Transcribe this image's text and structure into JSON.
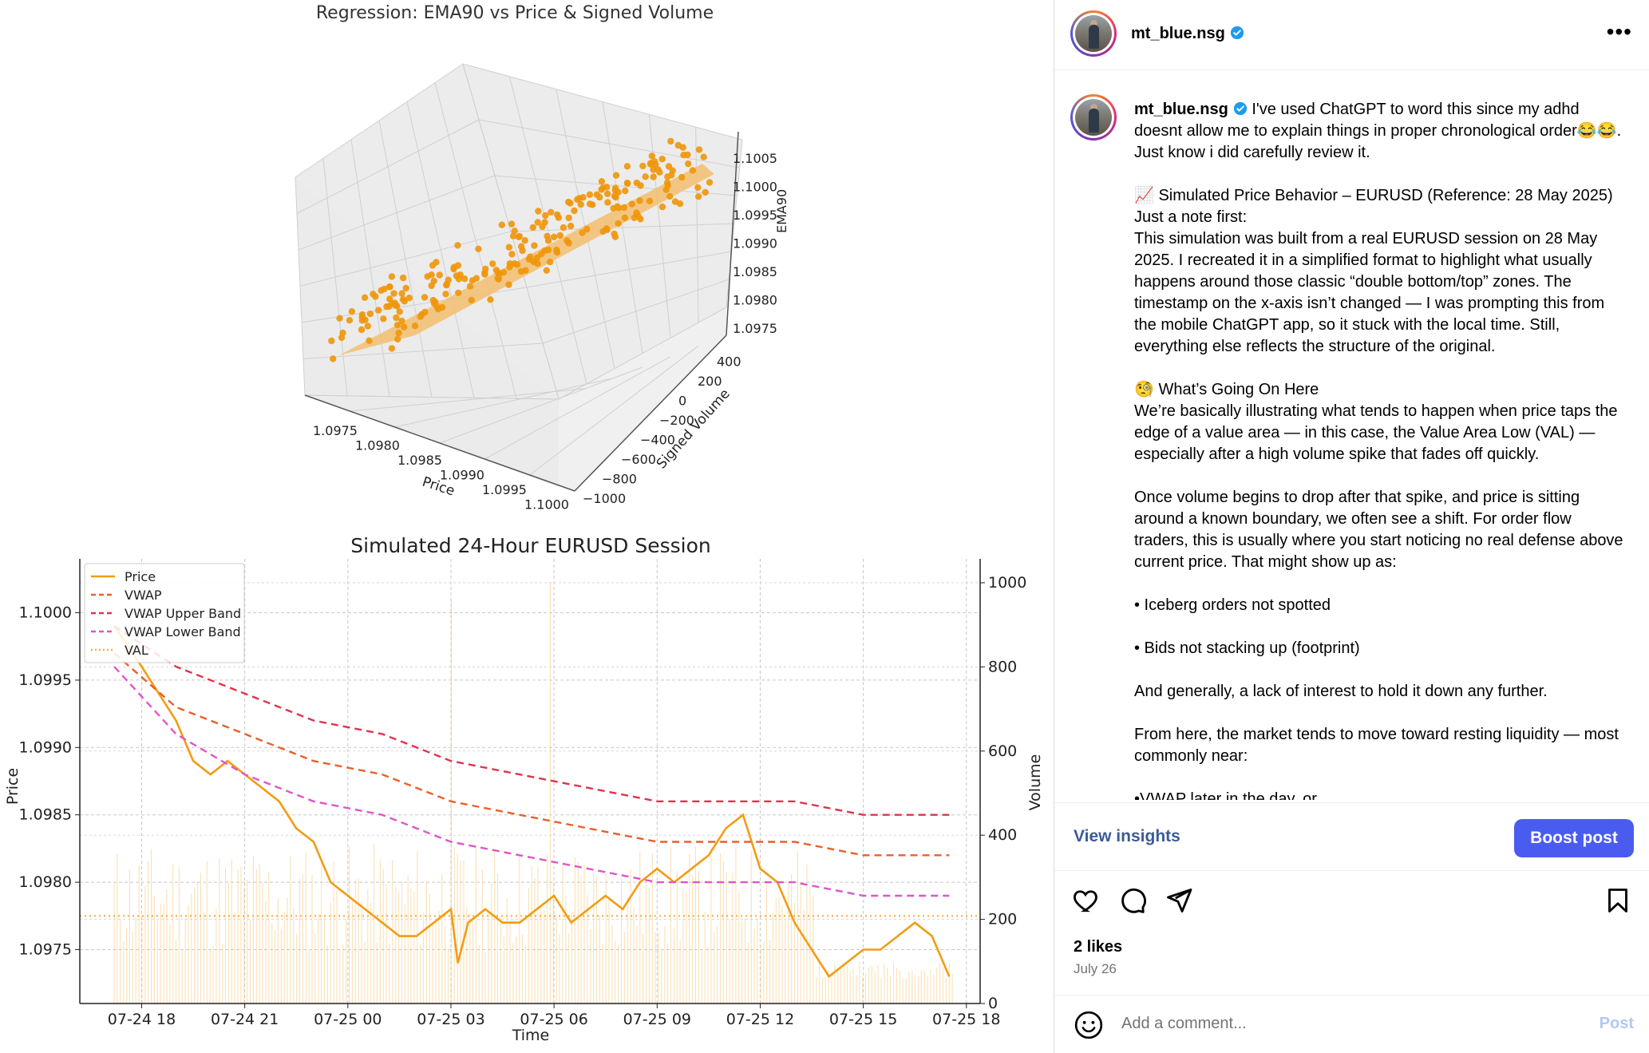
{
  "post": {
    "username": "mt_blue.nsg",
    "more_icon": "more-horizontal-icon",
    "caption_lines": [
      {
        "text": "I've used ChatGPT to word this since my adhd doesnt allow me to explain things in proper chronological order😂😂. Just know i did carefully review it.",
        "lead": true
      },
      {
        "text": ""
      },
      {
        "text": "📈 Simulated Price Behavior – EURUSD (Reference: 28 May 2025)"
      },
      {
        "text": "Just a note first:"
      },
      {
        "text": "This simulation was built from a real EURUSD session on 28 May 2025. I recreated it in a simplified format to highlight what usually happens around those classic “double bottom/top” zones. The timestamp on the x-axis isn’t changed — I was prompting this from the mobile ChatGPT app, so it stuck with the local time. Still, everything else reflects the structure of the original."
      },
      {
        "text": ""
      },
      {
        "text": "🧐 What’s Going On Here"
      },
      {
        "text": "We’re basically illustrating what tends to happen when price taps the edge of a value area — in this case, the Value Area Low (VAL) — especially after a high volume spike that fades off quickly."
      },
      {
        "text": ""
      },
      {
        "text": "Once volume begins to drop after that spike, and price is sitting around a known boundary, we often see a shift. For order flow traders, this is usually where you start noticing no real defense above current price. That might show up as:"
      },
      {
        "text": ""
      },
      {
        "text": "• Iceberg orders not spotted"
      },
      {
        "text": ""
      },
      {
        "text": "• Bids not stacking up (footprint)"
      },
      {
        "text": ""
      },
      {
        "text": "And generally, a lack of interest to hold it down any further."
      },
      {
        "text": ""
      },
      {
        "text": "From here, the market tends to move toward resting liquidity — most commonly near:"
      },
      {
        "text": ""
      },
      {
        "text": "•VWAP later in the day, or"
      }
    ],
    "view_insights": "View insights",
    "boost_post": "Boost post",
    "likes": "2 likes",
    "date": "July 26",
    "comment_placeholder": "Add a comment...",
    "post_button": "Post",
    "colors": {
      "accent": "#4a5cf0",
      "link": "#3d5a98",
      "muted": "#737373"
    }
  },
  "chart_data": [
    {
      "type": "scatter3d",
      "title": "Regression: EMA90 vs Price & Signed Volume",
      "xlabel": "Price",
      "ylabel": "Signed Volume",
      "zlabel": "EMA90",
      "x_ticks": [
        "1.0975",
        "1.0980",
        "1.0985",
        "1.0990",
        "1.0995",
        "1.1000"
      ],
      "y_ticks": [
        "−1000",
        "−800",
        "−600",
        "−400",
        "−200",
        "0",
        "200",
        "400"
      ],
      "z_ticks": [
        "1.0975",
        "1.0980",
        "1.0985",
        "1.0990",
        "1.0995",
        "1.1000",
        "1.1005"
      ],
      "color": "#f0960a",
      "plane_color": "#f3c070"
    },
    {
      "type": "line",
      "title": "Simulated 24-Hour EURUSD Session",
      "xlabel": "Time",
      "ylabel": "Price",
      "y2label": "Volume",
      "ylim": [
        1.0971,
        1.1004
      ],
      "y2lim": [
        0,
        1000
      ],
      "x_tick_labels": [
        "07-24 18",
        "07-24 21",
        "07-25 00",
        "07-25 03",
        "07-25 06",
        "07-25 09",
        "07-25 12",
        "07-25 15",
        "07-25 18"
      ],
      "y_ticks": [
        "1.0975",
        "1.0980",
        "1.0985",
        "1.0990",
        "1.0995",
        "1.1000"
      ],
      "y2_ticks": [
        "0",
        "200",
        "400",
        "600",
        "800",
        "1000"
      ],
      "x_hours": [
        0,
        3,
        6,
        9,
        12,
        15,
        18,
        21,
        24
      ],
      "legend": [
        "Price",
        "VWAP",
        "VWAP Upper Band",
        "VWAP Lower Band",
        "VAL"
      ],
      "legend_position": "top-left",
      "grid": true,
      "val": 1.09775,
      "series": [
        {
          "name": "Price",
          "color": "#f39c12",
          "style": "solid",
          "hours": [
            -0.8,
            0,
            0.5,
            1,
            1.5,
            2,
            2.5,
            3,
            3.5,
            4,
            4.5,
            5,
            5.5,
            6,
            6.5,
            7,
            7.5,
            8,
            8.5,
            9,
            9.2,
            9.5,
            10,
            10.5,
            11,
            11.5,
            12,
            12.5,
            13,
            13.5,
            14,
            14.5,
            15,
            15.5,
            16,
            16.5,
            17,
            17.5,
            18,
            18.5,
            19,
            19.5,
            20,
            20.5,
            21,
            21.5,
            22,
            22.5,
            23,
            23.5
          ],
          "values": [
            1.0999,
            1.0996,
            1.0994,
            1.0992,
            1.0989,
            1.0988,
            1.0989,
            1.0988,
            1.0987,
            1.0986,
            1.0984,
            1.0983,
            1.098,
            1.0979,
            1.0978,
            1.0977,
            1.0976,
            1.0976,
            1.0977,
            1.0978,
            1.0974,
            1.0977,
            1.0978,
            1.0977,
            1.0977,
            1.0978,
            1.0979,
            1.0977,
            1.0978,
            1.0979,
            1.0978,
            1.098,
            1.0981,
            1.098,
            1.0981,
            1.0982,
            1.0984,
            1.0985,
            1.0981,
            1.098,
            1.0977,
            1.0975,
            1.0973,
            1.0974,
            1.0975,
            1.0975,
            1.0976,
            1.0977,
            1.0976,
            1.0973
          ]
        },
        {
          "name": "VWAP",
          "color": "#e8602c",
          "style": "dashed",
          "hours": [
            -0.8,
            1,
            3,
            5,
            7,
            9,
            11,
            13,
            15,
            17,
            19,
            21,
            23,
            23.5
          ],
          "values": [
            1.0997,
            1.0993,
            1.0991,
            1.0989,
            1.0988,
            1.0986,
            1.0985,
            1.0984,
            1.0983,
            1.0983,
            1.0983,
            1.0982,
            1.0982,
            1.0982
          ]
        },
        {
          "name": "VWAP Upper Band",
          "color": "#e0334e",
          "style": "dashed",
          "hours": [
            -0.8,
            1,
            3,
            5,
            7,
            9,
            11,
            13,
            15,
            17,
            19,
            21,
            23,
            23.5
          ],
          "values": [
            1.0999,
            1.0996,
            1.0994,
            1.0992,
            1.0991,
            1.0989,
            1.0988,
            1.0987,
            1.0986,
            1.0986,
            1.0986,
            1.0985,
            1.0985,
            1.0985
          ]
        },
        {
          "name": "VWAP Lower Band",
          "color": "#e055c8",
          "style": "dashed",
          "hours": [
            -0.8,
            1,
            3,
            5,
            7,
            9,
            11,
            13,
            15,
            17,
            19,
            21,
            23,
            23.5
          ],
          "values": [
            1.0996,
            1.0991,
            1.0988,
            1.0986,
            1.0985,
            1.0983,
            1.0982,
            1.0981,
            1.098,
            1.098,
            1.098,
            1.0979,
            1.0979,
            1.0979
          ]
        },
        {
          "name": "VAL",
          "color": "#f5b041",
          "style": "dotted",
          "values": [
            1.09775
          ]
        }
      ]
    }
  ]
}
